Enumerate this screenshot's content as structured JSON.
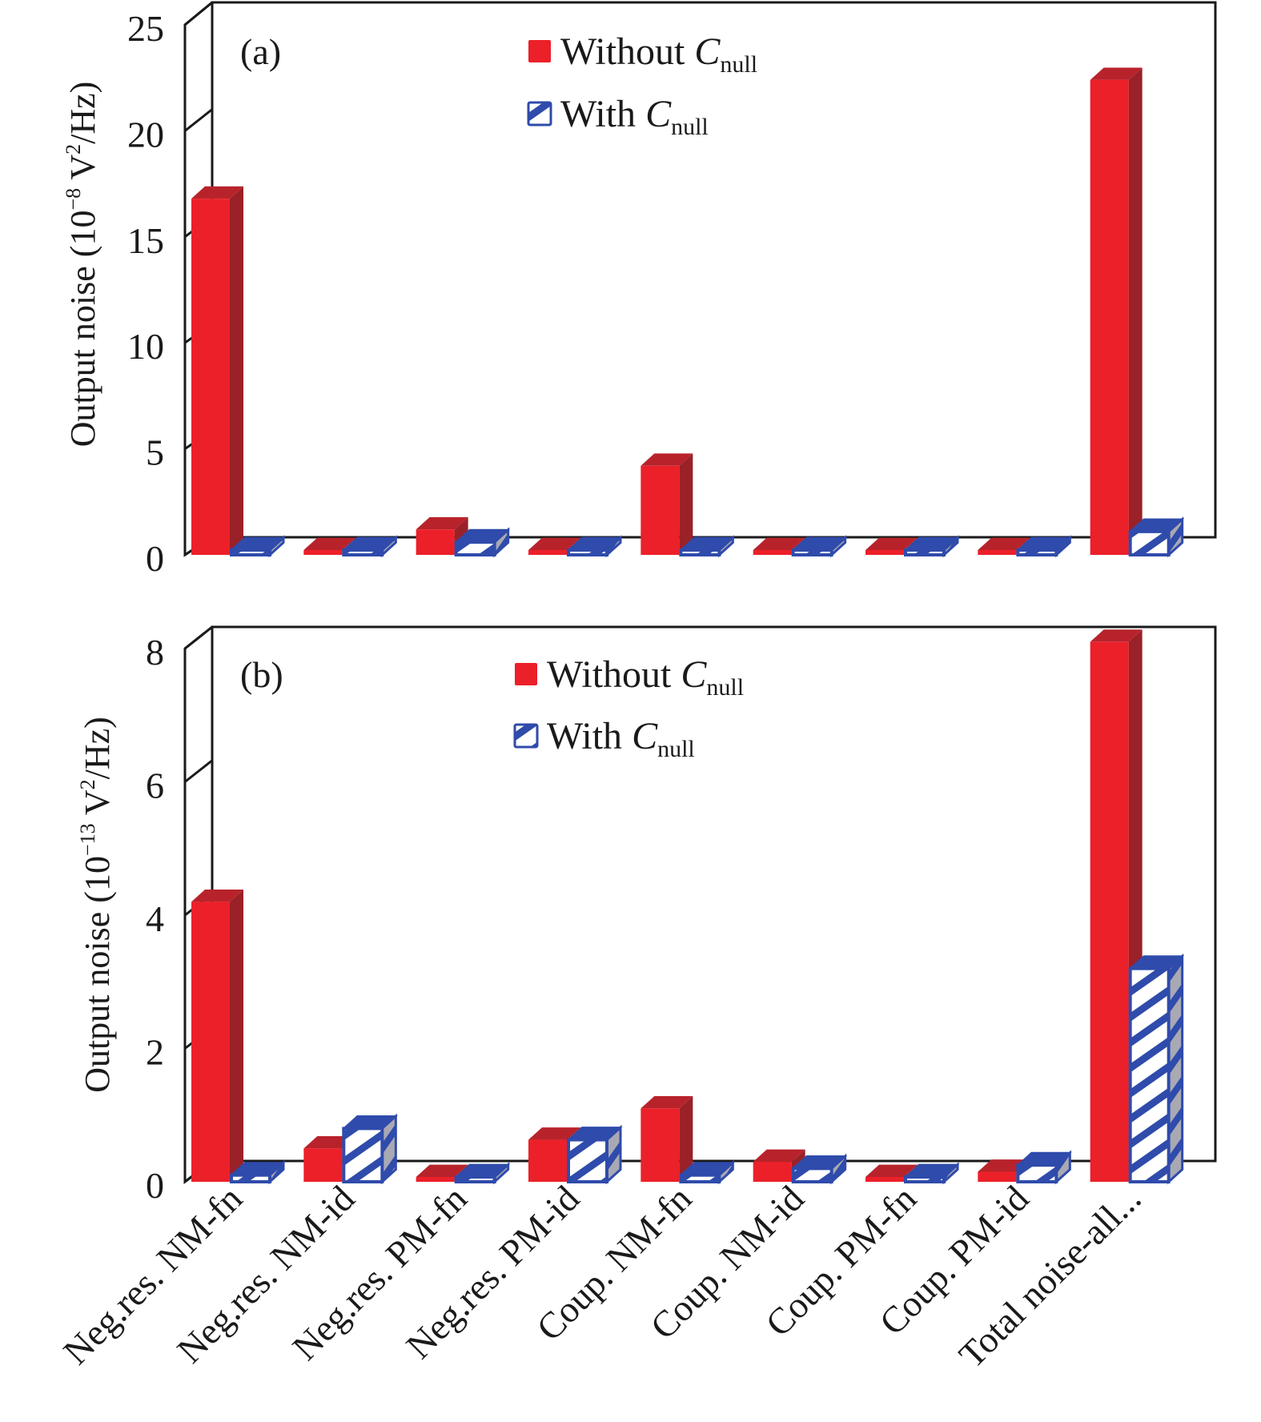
{
  "chart_data": [
    {
      "type": "bar",
      "panel_label": "(a)",
      "title": "",
      "xlabel": "",
      "ylabel": "Output noise (10⁻⁸ V²/Hz)",
      "ylabel_parts": {
        "prefix": "Output noise (10",
        "exp": "−8",
        "mid": " V",
        "exp2": "2",
        "suffix": "/Hz)"
      },
      "ylim": [
        0,
        25
      ],
      "yticks": [
        0,
        5,
        10,
        15,
        20,
        25
      ],
      "grid": false,
      "legend_position": "top-center",
      "categories": [
        "Neg.res. NM-fn",
        "Neg.res. NM-id",
        "Neg.res. PM-fn",
        "Neg.res. PM-id",
        "Coup. NM-fn",
        "Coup. NM-id",
        "Coup. PM-fn",
        "Coup. PM-id",
        "Total noise-all..."
      ],
      "series": [
        {
          "name": "Without C_null",
          "label": "Without ",
          "sym": "C",
          "sub": "null",
          "color": "#ec2029",
          "pattern": "solid",
          "values": [
            16.8,
            0.05,
            1.2,
            0.05,
            4.2,
            0.05,
            0.05,
            0.05,
            22.4
          ]
        },
        {
          "name": "With C_null",
          "label": "With ",
          "sym": "C",
          "sub": "null",
          "color": "#2f4bab",
          "pattern": "diagonal-hatch",
          "values": [
            0.1,
            0.1,
            0.6,
            0.05,
            0.1,
            0.05,
            0.05,
            0.05,
            1.1
          ]
        }
      ]
    },
    {
      "type": "bar",
      "panel_label": "(b)",
      "title": "",
      "xlabel": "",
      "ylabel": "Output noise (10⁻¹³ V²/Hz)",
      "ylabel_parts": {
        "prefix": "Output noise (10",
        "exp": "−13",
        "mid": " V",
        "exp2": "2",
        "suffix": "/Hz)"
      },
      "ylim": [
        0,
        8
      ],
      "yticks": [
        0,
        2,
        4,
        6,
        8
      ],
      "grid": false,
      "legend_position": "top-center",
      "categories": [
        "Neg.res. NM-fn",
        "Neg.res. NM-id",
        "Neg.res. PM-fn",
        "Neg.res. PM-id",
        "Coup. NM-fn",
        "Coup. NM-id",
        "Coup. PM-fn",
        "Coup. PM-id",
        "Total noise-all..."
      ],
      "series": [
        {
          "name": "Without C_null",
          "label": "Without ",
          "sym": "C",
          "sub": "null",
          "color": "#ec2029",
          "pattern": "solid",
          "values": [
            4.2,
            0.5,
            0.05,
            0.63,
            1.1,
            0.3,
            0.05,
            0.15,
            8.1
          ]
        },
        {
          "name": "With C_null",
          "label": "With ",
          "sym": "C",
          "sub": "null",
          "color": "#2f4bab",
          "pattern": "diagonal-hatch",
          "values": [
            0.1,
            0.8,
            0.05,
            0.63,
            0.1,
            0.2,
            0.05,
            0.25,
            3.2
          ]
        }
      ]
    }
  ]
}
